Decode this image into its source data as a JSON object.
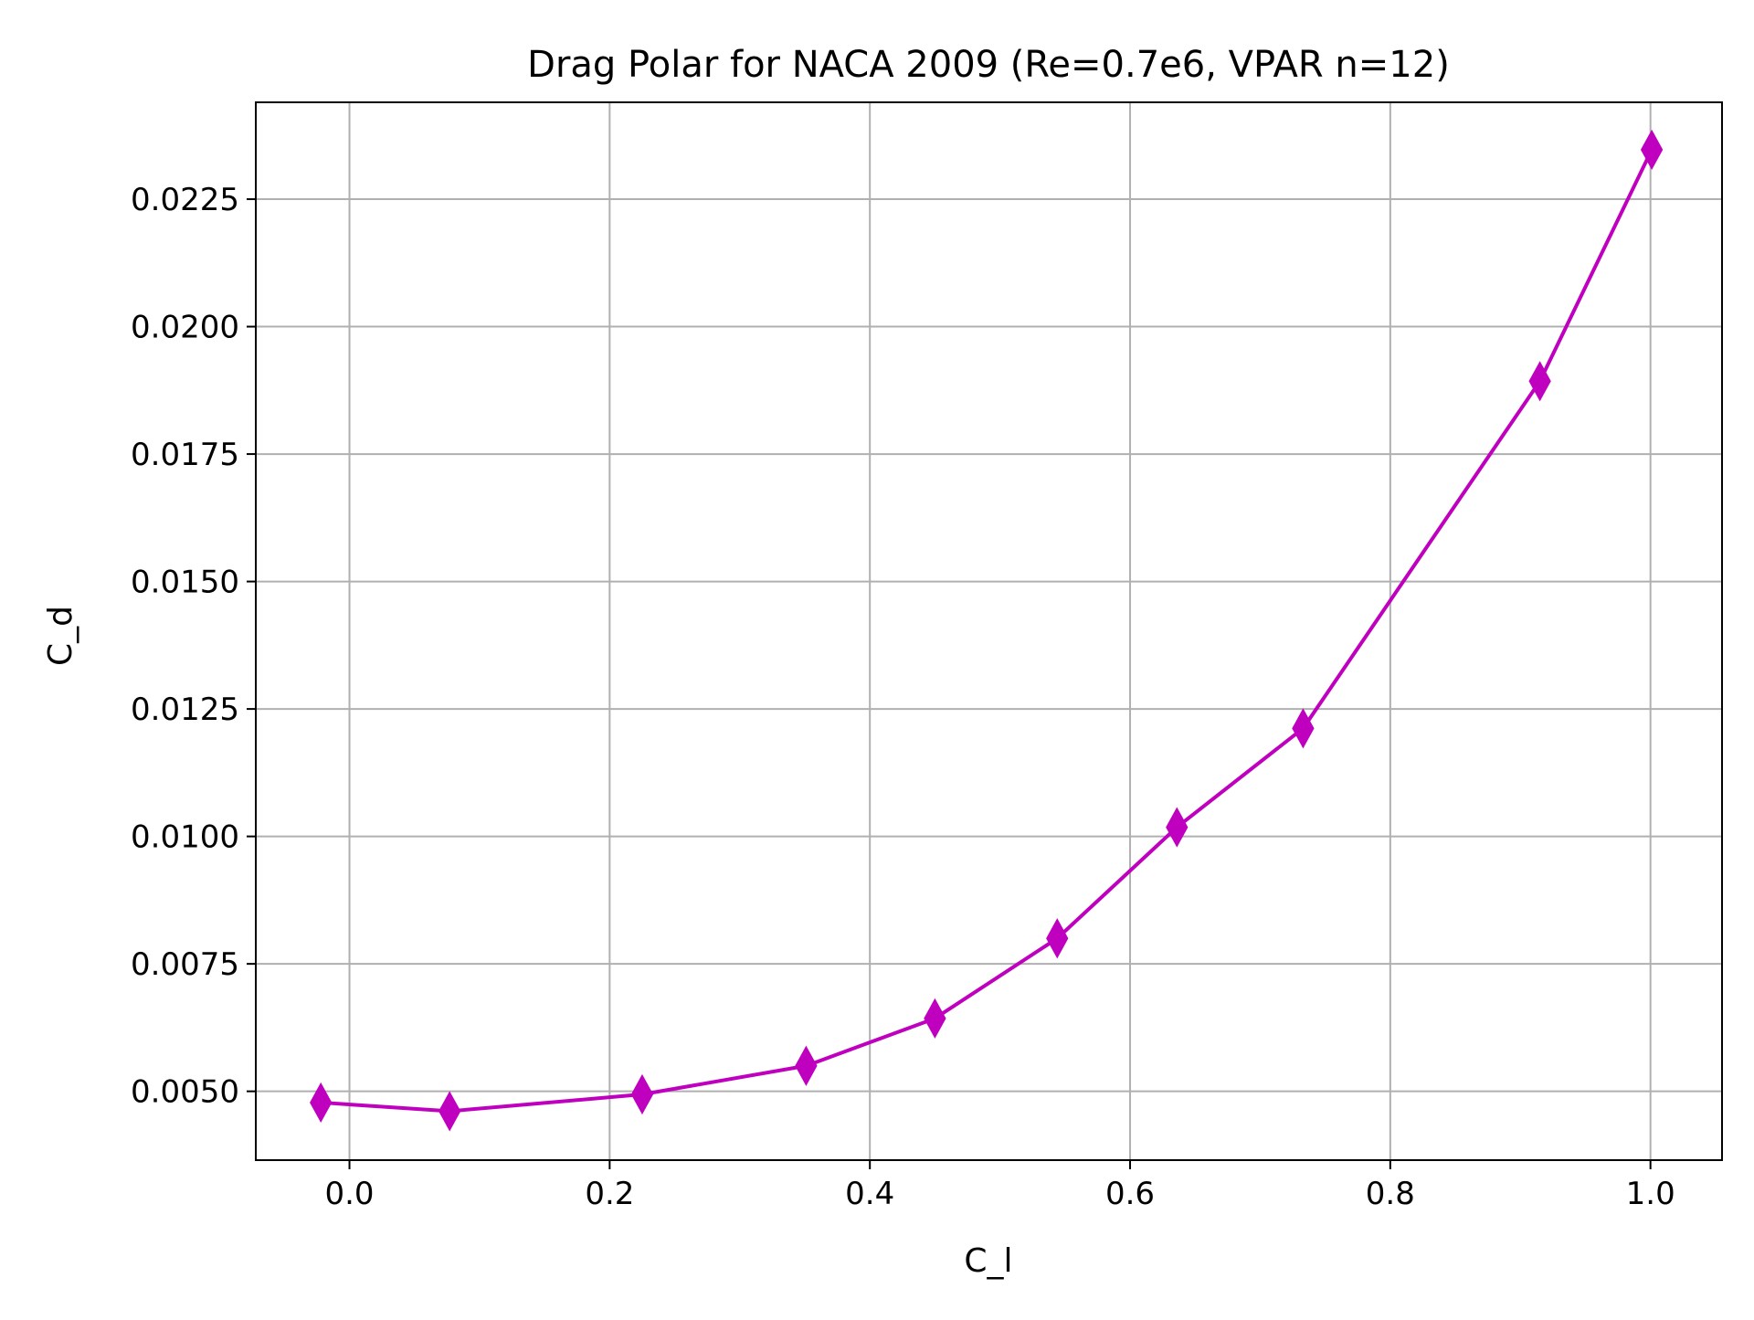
{
  "chart_data": {
    "type": "line",
    "title": "Drag Polar for NACA 2009 (Re=0.7e6, VPAR n=12)",
    "xlabel": "C_l",
    "ylabel": "C_d",
    "xlim": [
      -0.072,
      1.055
    ],
    "ylim": [
      0.00365,
      0.0244
    ],
    "x_ticks": [
      0.0,
      0.2,
      0.4,
      0.6,
      0.8,
      1.0
    ],
    "x_tick_labels": [
      "0.0",
      "0.2",
      "0.4",
      "0.6",
      "0.8",
      "1.0"
    ],
    "y_ticks": [
      0.005,
      0.0075,
      0.01,
      0.0125,
      0.015,
      0.0175,
      0.02,
      0.0225
    ],
    "y_tick_labels": [
      "0.0050",
      "0.0075",
      "0.0100",
      "0.0125",
      "0.0150",
      "0.0175",
      "0.0200",
      "0.0225"
    ],
    "grid": true,
    "series": [
      {
        "color": "#bf00bf",
        "marker": "thin-diamond",
        "x": [
          -0.022,
          0.077,
          0.225,
          0.351,
          0.45,
          0.544,
          0.636,
          0.733,
          0.915,
          1.001
        ],
        "y": [
          0.00478,
          0.00461,
          0.00494,
          0.0055,
          0.00643,
          0.008,
          0.01018,
          0.01212,
          0.01893,
          0.02347
        ]
      }
    ]
  }
}
